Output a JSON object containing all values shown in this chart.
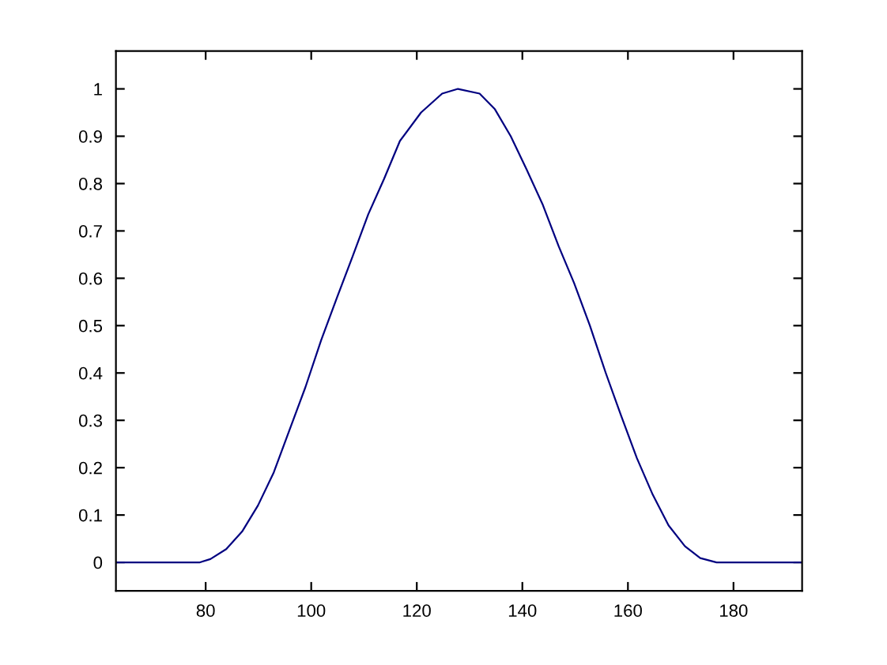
{
  "chart_data": {
    "type": "line",
    "x": [
      63,
      78.9,
      80.9,
      83.9,
      86.9,
      89.9,
      92.9,
      95.9,
      98.9,
      101.9,
      104.9,
      107.8,
      110.8,
      113.8,
      116.8,
      120.8,
      124.8,
      127.8,
      131.9,
      134.8,
      137.8,
      140.8,
      143.8,
      146.9,
      149.8,
      152.8,
      155.8,
      158.7,
      161.7,
      164.7,
      167.7,
      170.8,
      173.7,
      176.8,
      193
    ],
    "series": [
      {
        "color": "#000080",
        "values": [
          0,
          0,
          0.007,
          0.028,
          0.065,
          0.12,
          0.19,
          0.28,
          0.37,
          0.47,
          0.56,
          0.645,
          0.735,
          0.81,
          0.89,
          0.95,
          0.99,
          1.0,
          0.99,
          0.957,
          0.9,
          0.83,
          0.757,
          0.667,
          0.59,
          0.5,
          0.4,
          0.31,
          0.22,
          0.143,
          0.078,
          0.034,
          0.009,
          0,
          0
        ]
      }
    ],
    "xlim": [
      63,
      193
    ],
    "ylim": [
      -0.06,
      1.08
    ],
    "xticks": [
      80,
      100,
      120,
      140,
      160,
      180
    ],
    "yticks": [
      0,
      0.1,
      0.2,
      0.3,
      0.4,
      0.5,
      0.6,
      0.7,
      0.8,
      0.9,
      1
    ],
    "grid": false
  }
}
